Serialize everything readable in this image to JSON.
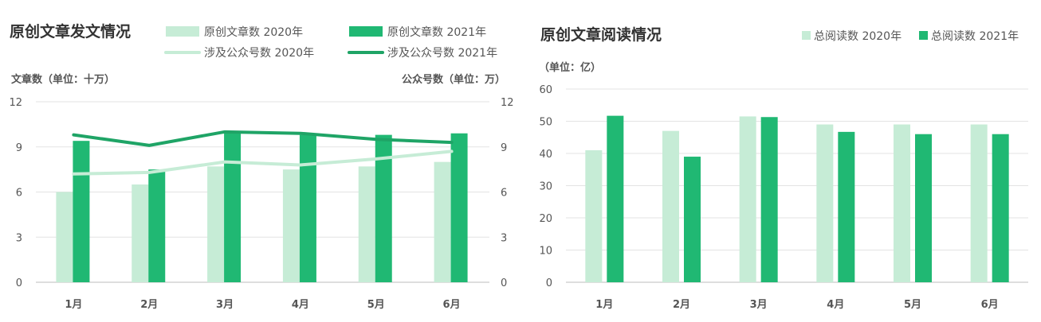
{
  "colors": {
    "light": "#c6ecd6",
    "dark": "#20b873",
    "darkLine": "#1fa466"
  },
  "left": {
    "title": "原创文章发文情况",
    "unit_left": "文章数（单位：十万）",
    "unit_right": "公众号数（单位：万）",
    "legend": {
      "bar2020": "原创文章数 2020年",
      "bar2021": "原创文章数 2021年",
      "line2020": "涉及公众号数 2020年",
      "line2021": "涉及公众号数 2021年"
    }
  },
  "right": {
    "title": "原创文章阅读情况",
    "unit": "（单位：亿）",
    "legend": {
      "bar2020": "总阅读数 2020年",
      "bar2021": "总阅读数 2021年"
    }
  },
  "chart_data": [
    {
      "type": "bar",
      "title": "原创文章发文情况",
      "categories": [
        "1月",
        "2月",
        "3月",
        "4月",
        "5月",
        "6月"
      ],
      "ylabel": "文章数（单位：十万）",
      "y2label": "公众号数（单位：万）",
      "ylim": [
        0,
        12
      ],
      "y2lim": [
        0,
        12
      ],
      "yticks": [
        0,
        3,
        6,
        9,
        12
      ],
      "series": [
        {
          "name": "原创文章数 2020年",
          "kind": "bar",
          "values": [
            6.0,
            6.5,
            7.7,
            7.5,
            7.7,
            8.0
          ]
        },
        {
          "name": "原创文章数 2021年",
          "kind": "bar",
          "values": [
            9.4,
            7.5,
            10.0,
            9.8,
            9.8,
            9.9
          ]
        },
        {
          "name": "涉及公众号数 2020年",
          "kind": "line",
          "axis": "right",
          "values": [
            7.2,
            7.3,
            8.0,
            7.8,
            8.2,
            8.7
          ]
        },
        {
          "name": "涉及公众号数 2021年",
          "kind": "line",
          "axis": "right",
          "values": [
            9.8,
            9.1,
            10.0,
            9.9,
            9.5,
            9.3
          ]
        }
      ],
      "grid": true,
      "legend": "top"
    },
    {
      "type": "bar",
      "title": "原创文章阅读情况",
      "categories": [
        "1月",
        "2月",
        "3月",
        "4月",
        "5月",
        "6月"
      ],
      "ylabel": "（单位：亿）",
      "ylim": [
        0,
        60
      ],
      "yticks": [
        0,
        10,
        20,
        30,
        40,
        50,
        60
      ],
      "series": [
        {
          "name": "总阅读数 2020年",
          "values": [
            41,
            47,
            51.5,
            49,
            49,
            49
          ]
        },
        {
          "name": "总阅读数 2021年",
          "values": [
            51.7,
            39,
            51.3,
            46.7,
            46,
            46
          ]
        }
      ],
      "grid": true,
      "legend": "top-right"
    }
  ]
}
